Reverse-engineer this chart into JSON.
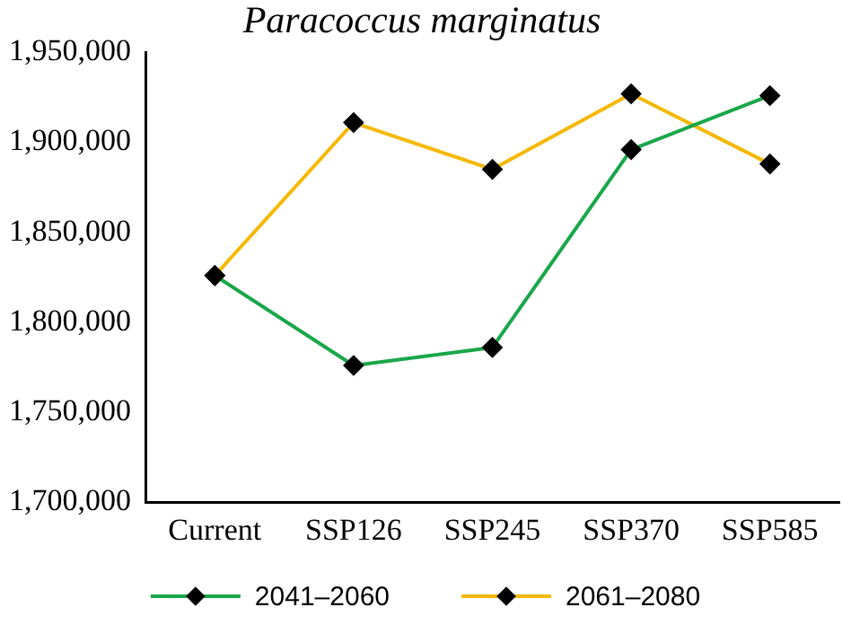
{
  "chart_data": {
    "type": "line",
    "title": "Paracoccus marginatus",
    "categories": [
      "Current",
      "SSP126",
      "SSP245",
      "SSP370",
      "SSP585"
    ],
    "series": [
      {
        "name": "2041–2060",
        "color": "#1aa64a",
        "values": [
          1826000,
          1776000,
          1786000,
          1896000,
          1926000
        ]
      },
      {
        "name": "2061–2080",
        "color": "#f5b800",
        "values": [
          1826000,
          1911000,
          1885000,
          1927000,
          1888000
        ]
      }
    ],
    "ylim": [
      1700000,
      1950000
    ],
    "yticks": [
      {
        "value": 1700000,
        "label": "1,700,000"
      },
      {
        "value": 1750000,
        "label": "1,750,000"
      },
      {
        "value": 1800000,
        "label": "1,800,000"
      },
      {
        "value": 1850000,
        "label": "1,850,000"
      },
      {
        "value": 1900000,
        "label": "1,900,000"
      },
      {
        "value": 1950000,
        "label": "1,950,000"
      }
    ],
    "grid": false,
    "legend": "bottom",
    "marker": "diamond",
    "line_style": "solid"
  }
}
